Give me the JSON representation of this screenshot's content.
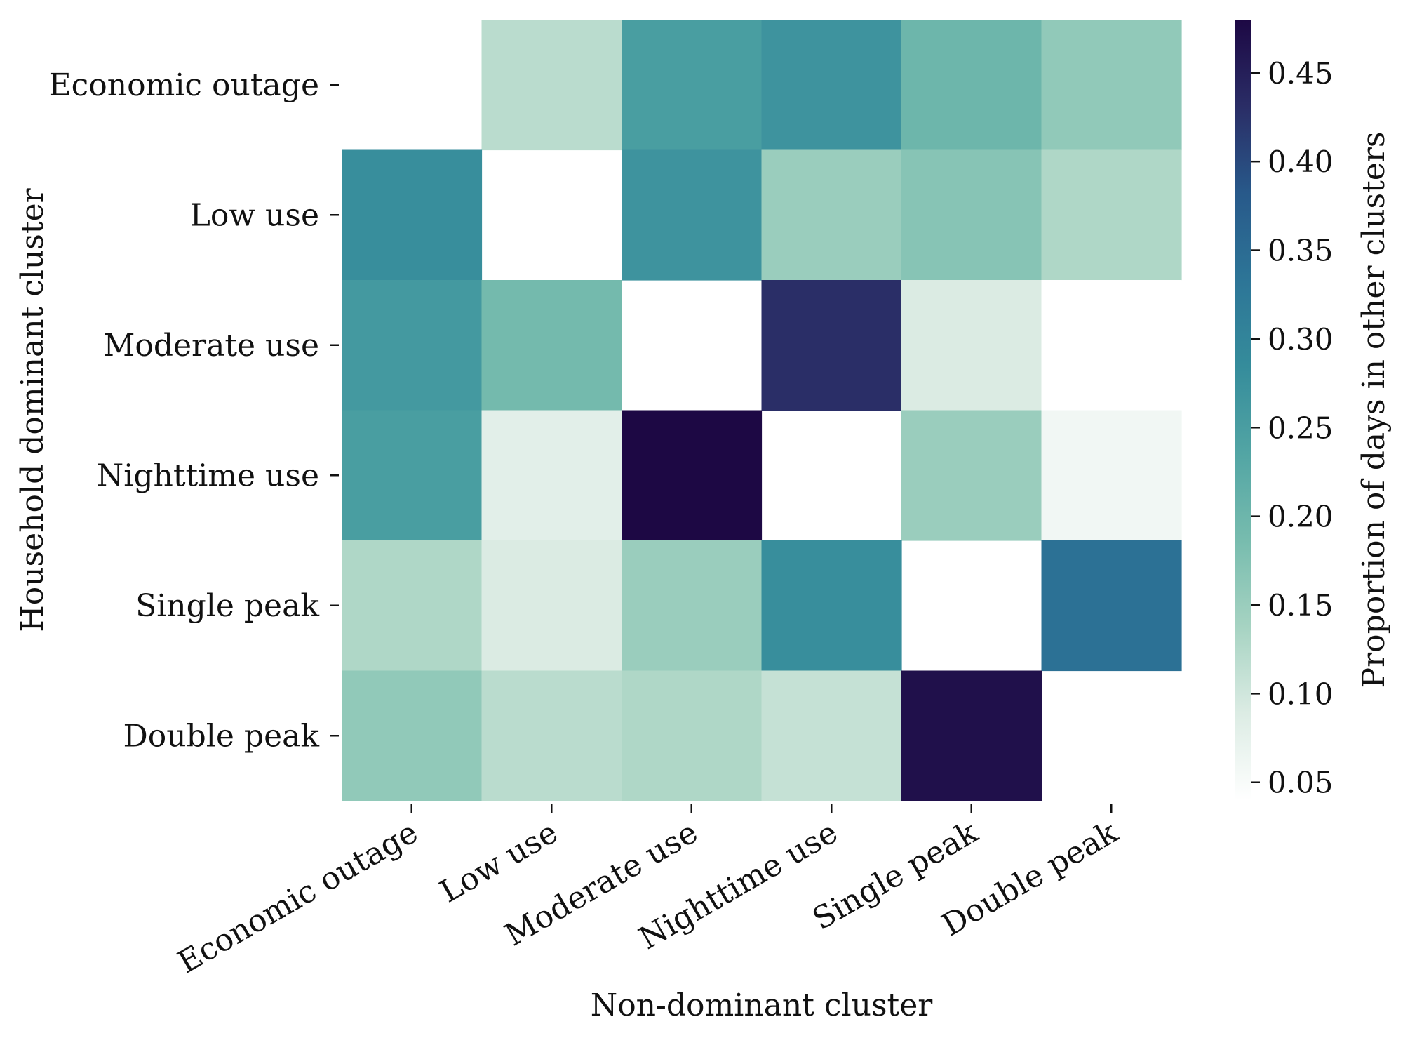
{
  "chart_data": {
    "type": "heatmap",
    "title": "",
    "xlabel": "Non-dominant cluster",
    "ylabel": "Household dominant cluster",
    "x_categories": [
      "Economic outage",
      "Low use",
      "Moderate use",
      "Nighttime use",
      "Single peak",
      "Double peak"
    ],
    "y_categories": [
      "Economic outage",
      "Low use",
      "Moderate use",
      "Nighttime use",
      "Single peak",
      "Double peak"
    ],
    "values": [
      [
        null,
        0.12,
        0.25,
        0.27,
        0.2,
        0.16
      ],
      [
        0.28,
        null,
        0.27,
        0.15,
        0.17,
        0.13
      ],
      [
        0.26,
        0.19,
        null,
        0.43,
        0.09,
        0.04
      ],
      [
        0.25,
        0.08,
        0.48,
        null,
        0.15,
        0.06
      ],
      [
        0.13,
        0.09,
        0.15,
        0.28,
        null,
        0.34
      ],
      [
        0.16,
        0.12,
        0.13,
        0.11,
        0.47,
        null
      ]
    ],
    "colorbar": {
      "label": "Proportion of days in other clusters",
      "range": [
        0.04,
        0.48
      ],
      "ticks": [
        0.05,
        0.1,
        0.15,
        0.2,
        0.25,
        0.3,
        0.35,
        0.4,
        0.45
      ],
      "tick_labels": [
        "0.05",
        "0.10",
        "0.15",
        "0.20",
        "0.25",
        "0.30",
        "0.35",
        "0.40",
        "0.45"
      ]
    },
    "colormap_stops": [
      "#ffffff",
      "#dcece4",
      "#a6d3c2",
      "#77bcae",
      "#52a5a4",
      "#358c9b",
      "#2d7597",
      "#28598a",
      "#2a2d66",
      "#1d0844"
    ]
  }
}
